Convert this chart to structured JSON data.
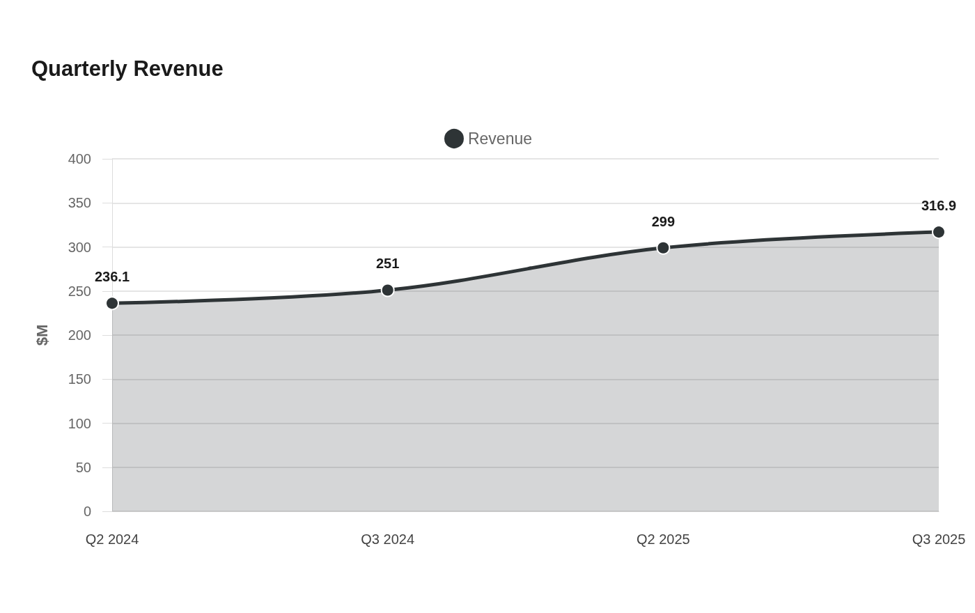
{
  "chart_data": {
    "type": "area",
    "title": "Quarterly Revenue",
    "ylabel": "$M",
    "categories": [
      "Q2 2024",
      "Q3 2024",
      "Q2 2025",
      "Q3 2025"
    ],
    "series": [
      {
        "name": "Revenue",
        "color": "#2e3436",
        "values": [
          236.1,
          251,
          299,
          316.9
        ]
      }
    ],
    "ylim": [
      0,
      400
    ],
    "yticks": [
      0,
      50,
      100,
      150,
      200,
      250,
      300,
      350,
      400
    ],
    "grid": "y",
    "legend": "top",
    "marker": "circle",
    "data_labels": true
  }
}
